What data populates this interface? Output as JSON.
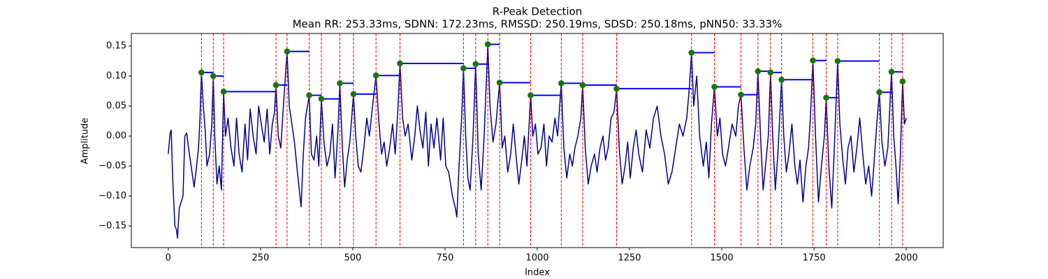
{
  "chart_data": {
    "type": "line",
    "title": "R-Peak Detection",
    "subtitle": "Mean RR: 253.33ms, SDNN: 172.23ms, RMSSD: 250.19ms, SDSD: 250.18ms, pNN50: 33.33%",
    "x_label": "Index",
    "y_label": "Amplitude",
    "xlim": [
      -100,
      2100
    ],
    "xticks": [
      0,
      250,
      500,
      750,
      1000,
      1250,
      1500,
      1750,
      2000
    ],
    "ylim": [
      -0.186,
      0.171
    ],
    "yticks": [
      {
        "value": -0.15,
        "label": "−0.15"
      },
      {
        "value": -0.1,
        "label": "−0.10"
      },
      {
        "value": -0.05,
        "label": "−0.05"
      },
      {
        "value": 0,
        "label": "0.00"
      },
      {
        "value": 0.05,
        "label": "0.05"
      },
      {
        "value": 0.1,
        "label": "0.10"
      },
      {
        "value": 0.15,
        "label": "0.15"
      }
    ],
    "peak_line_color": "#ff0000",
    "interval_color": "#0000ff",
    "series": [
      {
        "type": "line",
        "color": "#00008b",
        "x": [
          0,
          5,
          8,
          12,
          18,
          22,
          25,
          30,
          40,
          45,
          50,
          55,
          62,
          70,
          75,
          82,
          86,
          90,
          95,
          100,
          105,
          112,
          118,
          122,
          126,
          132,
          138,
          144,
          150,
          155,
          162,
          170,
          178,
          185,
          192,
          200,
          208,
          215,
          222,
          230,
          238,
          245,
          252,
          260,
          268,
          275,
          282,
          288,
          292,
          298,
          305,
          312,
          322,
          328,
          335,
          342,
          350,
          360,
          366,
          372,
          382,
          388,
          395,
          402,
          408,
          415,
          422,
          430,
          438,
          445,
          452,
          460,
          465,
          472,
          478,
          485,
          492,
          502,
          508,
          515,
          522,
          530,
          538,
          545,
          552,
          563,
          570,
          578,
          585,
          592,
          600,
          608,
          615,
          622,
          628,
          635,
          642,
          650,
          660,
          668,
          675,
          682,
          690,
          698,
          705,
          712,
          720,
          728,
          738,
          745,
          752,
          760,
          770,
          778,
          782,
          788,
          795,
          800,
          806,
          812,
          818,
          826,
          833,
          840,
          848,
          856,
          866,
          872,
          880,
          888,
          898,
          905,
          912,
          920,
          928,
          935,
          942,
          950,
          958,
          965,
          972,
          982,
          988,
          995,
          1002,
          1010,
          1018,
          1025,
          1032,
          1040,
          1048,
          1055,
          1065,
          1072,
          1080,
          1088,
          1095,
          1102,
          1110,
          1118,
          1123,
          1130,
          1138,
          1146,
          1155,
          1162,
          1170,
          1178,
          1185,
          1192,
          1200,
          1208,
          1215,
          1222,
          1230,
          1238,
          1245,
          1252,
          1260,
          1268,
          1275,
          1285,
          1295,
          1305,
          1315,
          1325,
          1335,
          1345,
          1355,
          1365,
          1375,
          1385,
          1395,
          1405,
          1412,
          1418,
          1424,
          1432,
          1440,
          1450,
          1458,
          1465,
          1472,
          1480,
          1488,
          1495,
          1502,
          1510,
          1518,
          1528,
          1538,
          1545,
          1552,
          1560,
          1568,
          1576,
          1585,
          1592,
          1598,
          1605,
          1612,
          1620,
          1626,
          1632,
          1638,
          1645,
          1652,
          1662,
          1668,
          1675,
          1682,
          1690,
          1698,
          1705,
          1712,
          1720,
          1728,
          1735,
          1740,
          1747,
          1754,
          1762,
          1770,
          1778,
          1783,
          1790,
          1798,
          1805,
          1814,
          1820,
          1828,
          1835,
          1842,
          1850,
          1858,
          1866,
          1874,
          1882,
          1890,
          1898,
          1906,
          1912,
          1920,
          1927,
          1934,
          1942,
          1950,
          1960,
          1966,
          1972,
          1978,
          1984,
          1990,
          1995,
          2000
        ],
        "values": [
          -0.03,
          0.005,
          0.01,
          -0.07,
          -0.15,
          -0.155,
          -0.17,
          -0.12,
          -0.1,
          0.0,
          0.005,
          -0.02,
          -0.05,
          -0.085,
          -0.06,
          -0.02,
          0.03,
          0.106,
          0.05,
          0.01,
          -0.05,
          -0.03,
          0.02,
          0.1,
          0.0,
          -0.08,
          -0.05,
          -0.09,
          0.074,
          0.0,
          0.03,
          -0.02,
          -0.05,
          0.03,
          -0.03,
          -0.06,
          0.02,
          -0.04,
          0.045,
          0.0,
          -0.03,
          0.05,
          0.02,
          -0.01,
          0.045,
          -0.03,
          0.02,
          0.04,
          0.085,
          0.0,
          -0.02,
          0.05,
          0.141,
          0.05,
          0.02,
          -0.01,
          -0.06,
          -0.118,
          -0.03,
          0.03,
          0.068,
          -0.03,
          -0.04,
          0.0,
          -0.05,
          0.062,
          -0.01,
          -0.05,
          -0.03,
          0.02,
          -0.07,
          0.01,
          0.088,
          -0.02,
          -0.085,
          -0.04,
          -0.01,
          0.07,
          0.0,
          -0.05,
          -0.06,
          -0.02,
          0.03,
          0.0,
          0.04,
          0.101,
          0.03,
          -0.03,
          -0.01,
          -0.05,
          -0.02,
          0.02,
          -0.03,
          0.04,
          0.121,
          0.03,
          0.0,
          0.02,
          -0.04,
          0.0,
          0.05,
          0.01,
          -0.02,
          0.04,
          -0.05,
          0.02,
          -0.02,
          0.03,
          -0.04,
          0.03,
          -0.05,
          -0.06,
          -0.1,
          -0.12,
          -0.135,
          -0.05,
          0.03,
          0.113,
          0.0,
          -0.07,
          -0.09,
          0.0,
          0.12,
          -0.03,
          -0.09,
          0.0,
          0.153,
          0.05,
          -0.01,
          0.02,
          0.089,
          -0.02,
          0.0,
          -0.06,
          -0.03,
          0.02,
          -0.03,
          -0.08,
          -0.04,
          0.0,
          -0.05,
          0.068,
          0.0,
          0.02,
          -0.03,
          -0.02,
          0.02,
          -0.05,
          0.0,
          -0.01,
          0.03,
          0.0,
          0.088,
          -0.02,
          -0.07,
          -0.03,
          -0.05,
          -0.02,
          0.0,
          0.03,
          0.085,
          -0.02,
          -0.08,
          -0.05,
          -0.03,
          -0.06,
          -0.02,
          0.0,
          -0.04,
          -0.02,
          0.03,
          0.04,
          0.079,
          -0.02,
          -0.08,
          -0.05,
          -0.01,
          -0.07,
          -0.02,
          0.01,
          -0.03,
          -0.06,
          0.01,
          -0.02,
          0.03,
          0.05,
          0.0,
          -0.03,
          -0.08,
          -0.06,
          -0.02,
          0.02,
          0.0,
          0.03,
          0.08,
          0.139,
          0.05,
          0.1,
          0.0,
          -0.05,
          -0.01,
          -0.07,
          0.02,
          0.082,
          0.0,
          0.03,
          -0.03,
          -0.05,
          -0.02,
          0.02,
          0.0,
          0.05,
          0.069,
          -0.02,
          -0.09,
          -0.05,
          -0.02,
          0.02,
          0.108,
          0.0,
          -0.09,
          -0.04,
          0.0,
          0.106,
          0.0,
          -0.09,
          -0.03,
          0.094,
          0.0,
          -0.06,
          -0.03,
          0.02,
          -0.05,
          -0.08,
          -0.04,
          -0.11,
          -0.05,
          -0.02,
          0.03,
          0.126,
          0.0,
          -0.11,
          -0.05,
          0.0,
          0.064,
          -0.05,
          -0.12,
          -0.02,
          0.125,
          0.02,
          -0.04,
          -0.08,
          -0.02,
          0.0,
          -0.06,
          -0.02,
          0.03,
          -0.03,
          -0.08,
          -0.05,
          -0.1,
          -0.05,
          0.02,
          0.073,
          -0.01,
          -0.05,
          -0.02,
          0.107,
          0.0,
          -0.05,
          -0.113,
          -0.03,
          0.091,
          0.02,
          0.03
        ]
      },
      {
        "type": "scatter",
        "color": "#008000",
        "x": [
          90,
          122,
          150,
          292,
          322,
          382,
          415,
          465,
          502,
          563,
          628,
          800,
          833,
          866,
          898,
          982,
          1065,
          1123,
          1215,
          1418,
          1480,
          1552,
          1598,
          1632,
          1662,
          1747,
          1783,
          1814,
          1927,
          1960,
          1990
        ],
        "values": [
          0.106,
          0.1,
          0.074,
          0.085,
          0.141,
          0.068,
          0.062,
          0.088,
          0.07,
          0.101,
          0.121,
          0.113,
          0.12,
          0.153,
          0.089,
          0.068,
          0.088,
          0.085,
          0.079,
          0.139,
          0.082,
          0.069,
          0.108,
          0.106,
          0.094,
          0.126,
          0.064,
          0.125,
          0.073,
          0.107,
          0.091
        ]
      }
    ]
  }
}
